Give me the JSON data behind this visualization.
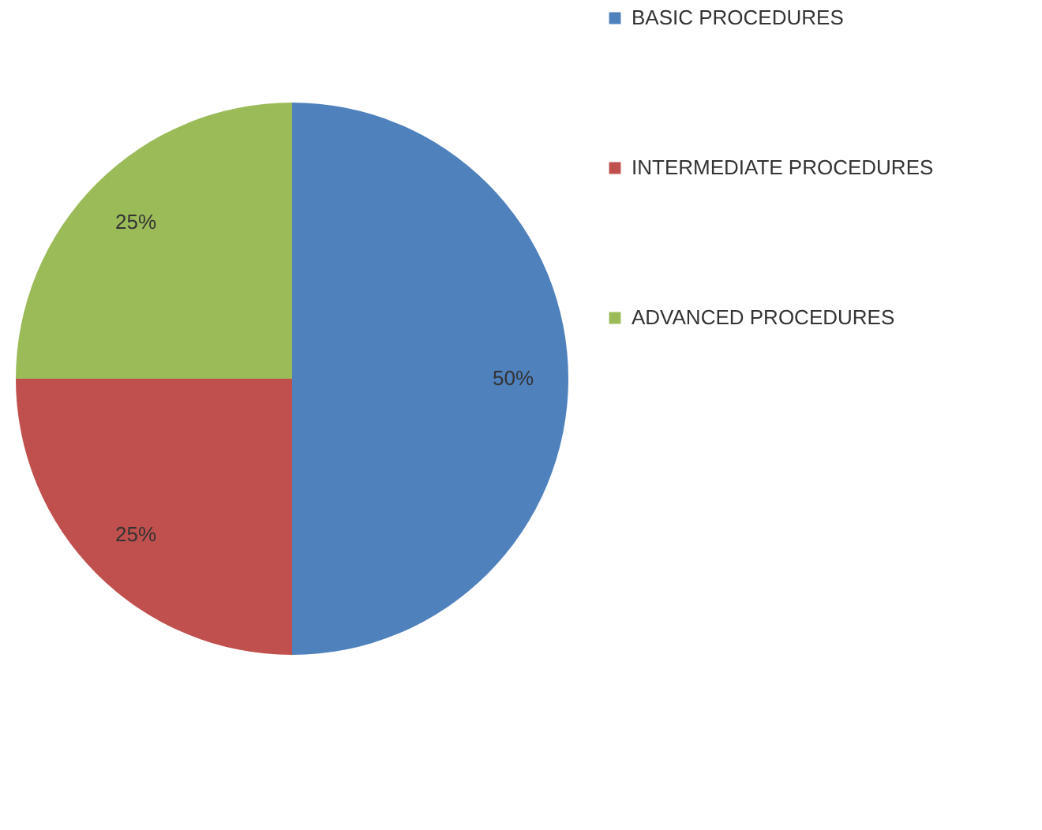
{
  "chart_data": {
    "type": "pie",
    "categories": [
      "BASIC PROCEDURES",
      "INTERMEDIATE PROCEDURES",
      "ADVANCED PROCEDURES"
    ],
    "values": [
      50,
      25,
      25
    ],
    "colors": [
      "#4f81bd",
      "#c0504d",
      "#9bbb59"
    ],
    "value_labels": [
      "50%",
      "25%",
      "25%"
    ],
    "legend": "right"
  }
}
